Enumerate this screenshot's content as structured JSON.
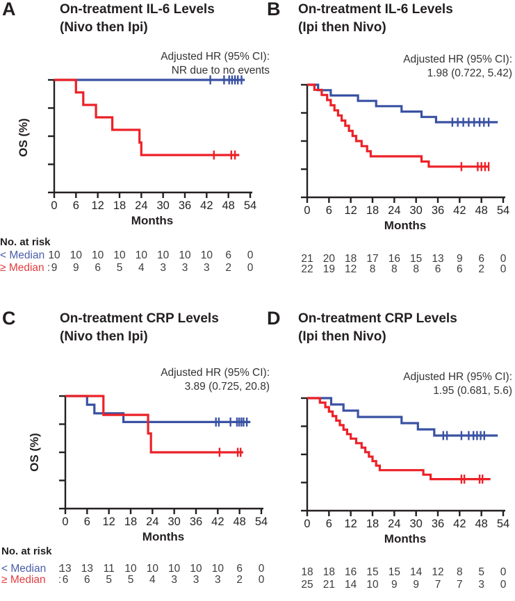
{
  "colors": {
    "blue": "#3a52a3",
    "red": "#ec2127",
    "label_blue": "#4a5ca8",
    "label_red": "#e23d40",
    "axis": "#231f20",
    "text": "#231f20",
    "numbers": "#3c3c3c"
  },
  "chart_data": [
    {
      "panel": "A",
      "type": "line",
      "subtype": "kaplan_meier",
      "title_line1": "On-treatment IL-6 Levels",
      "title_line2": "(Nivo then Ipi)",
      "hr_label": "Adjusted HR (95% CI):",
      "hr_value": "NR due to no events",
      "ylabel": "OS (%)",
      "xlabel": "Months",
      "xlim": [
        0,
        54
      ],
      "x_ticks": [
        0,
        6,
        12,
        18,
        24,
        30,
        36,
        42,
        48,
        54
      ],
      "ylim_pct": [
        0,
        100
      ],
      "y_ticks_pct": [
        0,
        25,
        50,
        75,
        100
      ],
      "series": [
        {
          "name": "< Median",
          "color_key": "blue",
          "points": [
            [
              0,
              100
            ],
            [
              52.5,
              100
            ]
          ],
          "censors": [
            [
              43,
              100
            ],
            [
              46.8,
              100
            ],
            [
              48.2,
              100
            ],
            [
              49,
              100
            ],
            [
              49.8,
              100
            ],
            [
              50.6,
              100
            ],
            [
              51.6,
              100
            ]
          ]
        },
        {
          "name": "≥ Median",
          "color_key": "red",
          "points": [
            [
              0,
              100
            ],
            [
              6,
              100
            ],
            [
              6,
              88.9
            ],
            [
              8,
              88.9
            ],
            [
              8,
              77.8
            ],
            [
              11.5,
              77.8
            ],
            [
              11.5,
              66.7
            ],
            [
              16,
              66.7
            ],
            [
              16,
              55.6
            ],
            [
              23.5,
              55.6
            ],
            [
              23.5,
              44.4
            ],
            [
              24,
              44.4
            ],
            [
              24,
              33.3
            ],
            [
              51,
              33.3
            ]
          ],
          "censors": [
            [
              44,
              33.3
            ],
            [
              48.8,
              33.3
            ],
            [
              49.8,
              33.3
            ]
          ]
        }
      ],
      "at_risk": {
        "header": "No. at risk",
        "rows": [
          {
            "label": "< Median",
            "sep": "",
            "color_key": "blue",
            "values": [
              "10",
              "10",
              "10",
              "10",
              "10",
              "10",
              "10",
              "10",
              "6",
              "0"
            ]
          },
          {
            "label": "≥ Median",
            "sep": ":",
            "color_key": "red",
            "values": [
              "9",
              "9",
              "6",
              "5",
              "4",
              "3",
              "3",
              "3",
              "2",
              "0"
            ]
          }
        ]
      }
    },
    {
      "panel": "B",
      "type": "line",
      "subtype": "kaplan_meier",
      "title_line1": "On-treatment IL-6 Levels",
      "title_line2": "(Ipi then Nivo)",
      "hr_label": "Adjusted HR (95% CI):",
      "hr_value": "1.98 (0.722, 5.42)",
      "xlabel": "Months",
      "xlim": [
        0,
        54
      ],
      "x_ticks": [
        0,
        6,
        12,
        18,
        24,
        30,
        36,
        42,
        48,
        54
      ],
      "ylim_pct": [
        0,
        100
      ],
      "y_ticks_pct": [
        0,
        25,
        50,
        75,
        100
      ],
      "series": [
        {
          "name": "< Median",
          "color_key": "blue",
          "points": [
            [
              0,
              100
            ],
            [
              3,
              100
            ],
            [
              3,
              95.2
            ],
            [
              6.5,
              95.2
            ],
            [
              6.5,
              90.5
            ],
            [
              14,
              90.5
            ],
            [
              14,
              85.7
            ],
            [
              19,
              85.7
            ],
            [
              19,
              81
            ],
            [
              26,
              81
            ],
            [
              26,
              76.2
            ],
            [
              31.5,
              76.2
            ],
            [
              31.5,
              71.4
            ],
            [
              35.5,
              71.4
            ],
            [
              35.5,
              66.7
            ],
            [
              52.5,
              66.7
            ]
          ],
          "censors": [
            [
              40,
              66.7
            ],
            [
              41.5,
              66.7
            ],
            [
              43,
              66.7
            ],
            [
              44.5,
              66.7
            ],
            [
              46,
              66.7
            ],
            [
              47.5,
              66.7
            ],
            [
              48.7,
              66.7
            ],
            [
              50,
              66.7
            ]
          ]
        },
        {
          "name": "≥ Median",
          "color_key": "red",
          "points": [
            [
              0,
              100
            ],
            [
              2,
              100
            ],
            [
              2,
              95.5
            ],
            [
              4,
              95.5
            ],
            [
              4,
              90.9
            ],
            [
              5.5,
              90.9
            ],
            [
              5.5,
              86.4
            ],
            [
              6.5,
              86.4
            ],
            [
              6.5,
              81.8
            ],
            [
              7.5,
              81.8
            ],
            [
              7.5,
              77.3
            ],
            [
              8.5,
              77.3
            ],
            [
              8.5,
              72.7
            ],
            [
              9.5,
              72.7
            ],
            [
              9.5,
              68.2
            ],
            [
              10.5,
              68.2
            ],
            [
              10.5,
              63.6
            ],
            [
              11.5,
              63.6
            ],
            [
              11.5,
              59.1
            ],
            [
              12.5,
              59.1
            ],
            [
              12.5,
              54.5
            ],
            [
              13.5,
              54.5
            ],
            [
              13.5,
              50
            ],
            [
              15,
              50
            ],
            [
              15,
              45.5
            ],
            [
              16.5,
              45.5
            ],
            [
              16.5,
              40.9
            ],
            [
              17.5,
              40.9
            ],
            [
              17.5,
              36.4
            ],
            [
              31.5,
              36.4
            ],
            [
              31.5,
              31.8
            ],
            [
              33.5,
              31.8
            ],
            [
              33.5,
              27.3
            ],
            [
              50,
              27.3
            ]
          ],
          "censors": [
            [
              42.5,
              27.3
            ],
            [
              47,
              27.3
            ],
            [
              48,
              27.3
            ],
            [
              49,
              27.3
            ],
            [
              50,
              27.3
            ]
          ]
        }
      ],
      "at_risk": {
        "rows": [
          {
            "label": "",
            "sep": "",
            "color_key": "blue",
            "values": [
              "21",
              "20",
              "18",
              "17",
              "16",
              "15",
              "13",
              "9",
              "6",
              "0"
            ]
          },
          {
            "label": "",
            "sep": "",
            "color_key": "red",
            "values": [
              "22",
              "19",
              "12",
              "8",
              "8",
              "8",
              "6",
              "6",
              "2",
              "0"
            ]
          }
        ]
      }
    },
    {
      "panel": "C",
      "type": "line",
      "subtype": "kaplan_meier",
      "title_line1": "On-treatment CRP Levels",
      "title_line2": "(Nivo then Ipi)",
      "hr_label": "Adjusted HR (95% CI):",
      "hr_value": "3.89 (0.725, 20.8)",
      "ylabel": "OS (%)",
      "xlabel": "Months",
      "xlim": [
        0,
        54
      ],
      "x_ticks": [
        0,
        6,
        12,
        18,
        24,
        30,
        36,
        42,
        48,
        54
      ],
      "ylim_pct": [
        0,
        100
      ],
      "y_ticks_pct": [
        0,
        25,
        50,
        75,
        100
      ],
      "series": [
        {
          "name": "< Median",
          "color_key": "blue",
          "points": [
            [
              0,
              100
            ],
            [
              6,
              100
            ],
            [
              6,
              92.3
            ],
            [
              8,
              92.3
            ],
            [
              8,
              84.6
            ],
            [
              16,
              84.6
            ],
            [
              16,
              76.9
            ],
            [
              51,
              76.9
            ]
          ],
          "censors": [
            [
              41.5,
              76.9
            ],
            [
              42.3,
              76.9
            ],
            [
              45.5,
              76.9
            ],
            [
              47.3,
              76.9
            ],
            [
              47.9,
              76.9
            ],
            [
              48.5,
              76.9
            ],
            [
              49.1,
              76.9
            ],
            [
              50,
              76.9
            ]
          ]
        },
        {
          "name": "≥ Median",
          "color_key": "red",
          "points": [
            [
              0,
              100
            ],
            [
              10.5,
              100
            ],
            [
              10.5,
              83.3
            ],
            [
              22.8,
              83.3
            ],
            [
              22.8,
              66.7
            ],
            [
              23.6,
              66.7
            ],
            [
              23.6,
              50
            ],
            [
              49,
              50
            ]
          ],
          "censors": [
            [
              42.5,
              50
            ],
            [
              47.5,
              50
            ],
            [
              48.3,
              50
            ]
          ]
        }
      ],
      "at_risk": {
        "header": "No. at risk",
        "rows": [
          {
            "label": "< Median",
            "sep": ":",
            "color_key": "blue",
            "values": [
              "13",
              "13",
              "11",
              "10",
              "10",
              "10",
              "10",
              "10",
              "6",
              "0"
            ]
          },
          {
            "label": "≥ Median",
            "sep": ":",
            "color_key": "red",
            "values": [
              "6",
              "6",
              "5",
              "5",
              "4",
              "3",
              "3",
              "3",
              "2",
              "0"
            ]
          }
        ]
      }
    },
    {
      "panel": "D",
      "type": "line",
      "subtype": "kaplan_meier",
      "title_line1": "On-treatment CRP Levels",
      "title_line2": "(Ipi then Nivo)",
      "hr_label": "Adjusted HR (95% CI):",
      "hr_value": "1.95 (0.681, 5.6)",
      "xlabel": "Months",
      "xlim": [
        0,
        54
      ],
      "x_ticks": [
        0,
        6,
        12,
        18,
        24,
        30,
        36,
        42,
        48,
        54
      ],
      "ylim_pct": [
        0,
        100
      ],
      "y_ticks_pct": [
        0,
        25,
        50,
        75,
        100
      ],
      "series": [
        {
          "name": "< Median",
          "color_key": "blue",
          "points": [
            [
              0,
              100
            ],
            [
              6.6,
              100
            ],
            [
              6.6,
              94.4
            ],
            [
              10,
              94.4
            ],
            [
              10,
              88.9
            ],
            [
              14,
              88.9
            ],
            [
              14,
              83.3
            ],
            [
              26,
              83.3
            ],
            [
              26,
              77.8
            ],
            [
              30.5,
              77.8
            ],
            [
              30.5,
              72.2
            ],
            [
              35,
              72.2
            ],
            [
              35,
              66.7
            ],
            [
              52.5,
              66.7
            ]
          ],
          "censors": [
            [
              37.5,
              66.7
            ],
            [
              38.5,
              66.7
            ],
            [
              42.5,
              66.7
            ],
            [
              44.5,
              66.7
            ],
            [
              45.8,
              66.7
            ],
            [
              46.8,
              66.7
            ],
            [
              47.8,
              66.7
            ],
            [
              48.8,
              66.7
            ]
          ]
        },
        {
          "name": "≥ Median",
          "color_key": "red",
          "points": [
            [
              0,
              100
            ],
            [
              3.5,
              100
            ],
            [
              3.5,
              96
            ],
            [
              5,
              96
            ],
            [
              5,
              92
            ],
            [
              6,
              92
            ],
            [
              6,
              88
            ],
            [
              7,
              88
            ],
            [
              7,
              84
            ],
            [
              8,
              84
            ],
            [
              8,
              80
            ],
            [
              9,
              80
            ],
            [
              9,
              76
            ],
            [
              10,
              76
            ],
            [
              10,
              72
            ],
            [
              11,
              72
            ],
            [
              11,
              68
            ],
            [
              12,
              68
            ],
            [
              12,
              64
            ],
            [
              13.5,
              64
            ],
            [
              13.5,
              60
            ],
            [
              15,
              60
            ],
            [
              15,
              56
            ],
            [
              16,
              56
            ],
            [
              16,
              52
            ],
            [
              17,
              52
            ],
            [
              17,
              48
            ],
            [
              18,
              48
            ],
            [
              18,
              44
            ],
            [
              19,
              44
            ],
            [
              19,
              40
            ],
            [
              20,
              40
            ],
            [
              20,
              36
            ],
            [
              32,
              36
            ],
            [
              32,
              32
            ],
            [
              34,
              32
            ],
            [
              34,
              28
            ],
            [
              50.5,
              28
            ]
          ],
          "censors": [
            [
              42.5,
              28
            ],
            [
              43.3,
              28
            ],
            [
              47.5,
              28
            ],
            [
              48.3,
              28
            ]
          ]
        }
      ],
      "at_risk": {
        "rows": [
          {
            "label": "",
            "sep": "",
            "color_key": "blue",
            "values": [
              "18",
              "18",
              "16",
              "15",
              "15",
              "14",
              "12",
              "8",
              "5",
              "0"
            ]
          },
          {
            "label": "",
            "sep": "",
            "color_key": "red",
            "values": [
              "25",
              "21",
              "14",
              "10",
              "9",
              "9",
              "7",
              "7",
              "3",
              "0"
            ]
          }
        ]
      }
    }
  ]
}
